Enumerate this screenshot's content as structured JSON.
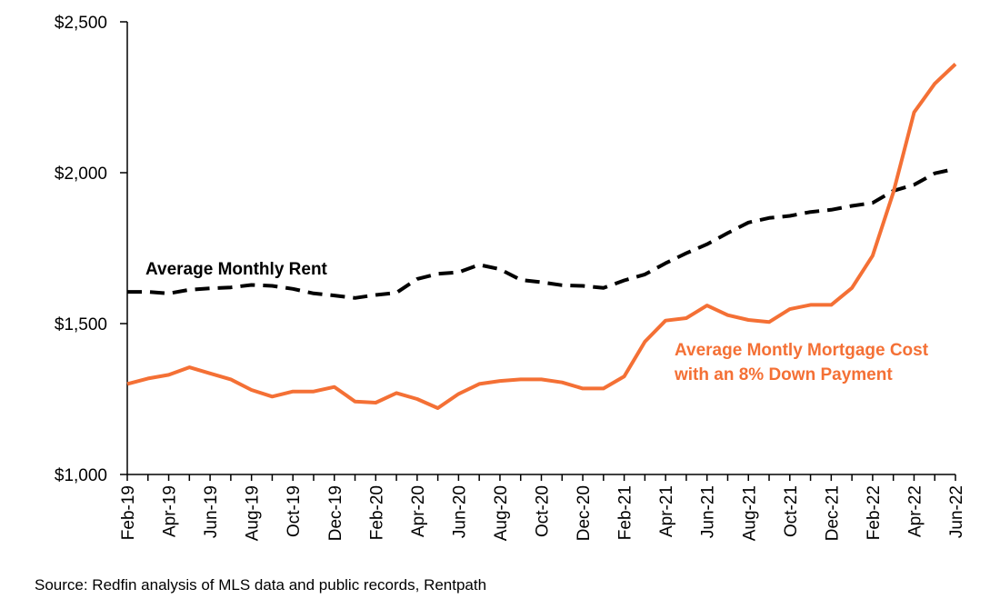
{
  "source_note": "Source: Redfin analysis of MLS data and public records, Rentpath",
  "chart_data": {
    "type": "line",
    "title": "",
    "xlabel": "",
    "ylabel": "",
    "ylim": [
      1000,
      2500
    ],
    "y_ticks": [
      "$1,000",
      "$1,500",
      "$2,000",
      "$2,500"
    ],
    "y_tick_values": [
      1000,
      1500,
      2000,
      2500
    ],
    "categories": [
      "Feb-19",
      "Mar-19",
      "Apr-19",
      "May-19",
      "Jun-19",
      "Jul-19",
      "Aug-19",
      "Sep-19",
      "Oct-19",
      "Nov-19",
      "Dec-19",
      "Jan-20",
      "Feb-20",
      "Mar-20",
      "Apr-20",
      "May-20",
      "Jun-20",
      "Jul-20",
      "Aug-20",
      "Sep-20",
      "Oct-20",
      "Nov-20",
      "Dec-20",
      "Jan-21",
      "Feb-21",
      "Mar-21",
      "Apr-21",
      "May-21",
      "Jun-21",
      "Jul-21",
      "Aug-21",
      "Sep-21",
      "Oct-21",
      "Nov-21",
      "Dec-21",
      "Jan-22",
      "Feb-22",
      "Mar-22",
      "Apr-22",
      "May-22",
      "Jun-22"
    ],
    "x_tick_labels": [
      "Feb-19",
      "Apr-19",
      "Jun-19",
      "Aug-19",
      "Oct-19",
      "Dec-19",
      "Feb-20",
      "Apr-20",
      "Jun-20",
      "Aug-20",
      "Oct-20",
      "Dec-20",
      "Feb-21",
      "Apr-21",
      "Jun-21",
      "Aug-21",
      "Oct-21",
      "Dec-21",
      "Feb-22",
      "Apr-22",
      "Jun-22"
    ],
    "grid": false,
    "legend": "none",
    "series": [
      {
        "name": "Average Monthly Rent",
        "color": "#000000",
        "style": "dashed",
        "values": [
          1605,
          1605,
          1600,
          1612,
          1617,
          1620,
          1628,
          1625,
          1615,
          1600,
          1593,
          1585,
          1595,
          1602,
          1648,
          1665,
          1670,
          1695,
          1680,
          1645,
          1637,
          1627,
          1625,
          1618,
          1643,
          1663,
          1700,
          1733,
          1763,
          1800,
          1835,
          1850,
          1857,
          1870,
          1877,
          1890,
          1900,
          1940,
          1960,
          1998,
          2013
        ]
      },
      {
        "name": "Average Montly Mortgage Cost with an 8% Down Payment",
        "color": "#F47035",
        "style": "solid",
        "values": [
          1300,
          1318,
          1330,
          1355,
          1335,
          1315,
          1280,
          1258,
          1275,
          1275,
          1290,
          1242,
          1238,
          1270,
          1250,
          1220,
          1267,
          1300,
          1310,
          1315,
          1315,
          1305,
          1285,
          1285,
          1325,
          1440,
          1510,
          1518,
          1560,
          1528,
          1512,
          1505,
          1548,
          1562,
          1562,
          1618,
          1725,
          1935,
          2200,
          2295,
          2360
        ]
      }
    ],
    "annotations": [
      {
        "series": "Average Monthly Rent",
        "lines": [
          "Average Monthly Rent"
        ]
      },
      {
        "series": "Average Montly Mortgage Cost with an 8% Down Payment",
        "lines": [
          "Average Montly Mortgage Cost",
          "with an 8% Down Payment"
        ]
      }
    ]
  }
}
